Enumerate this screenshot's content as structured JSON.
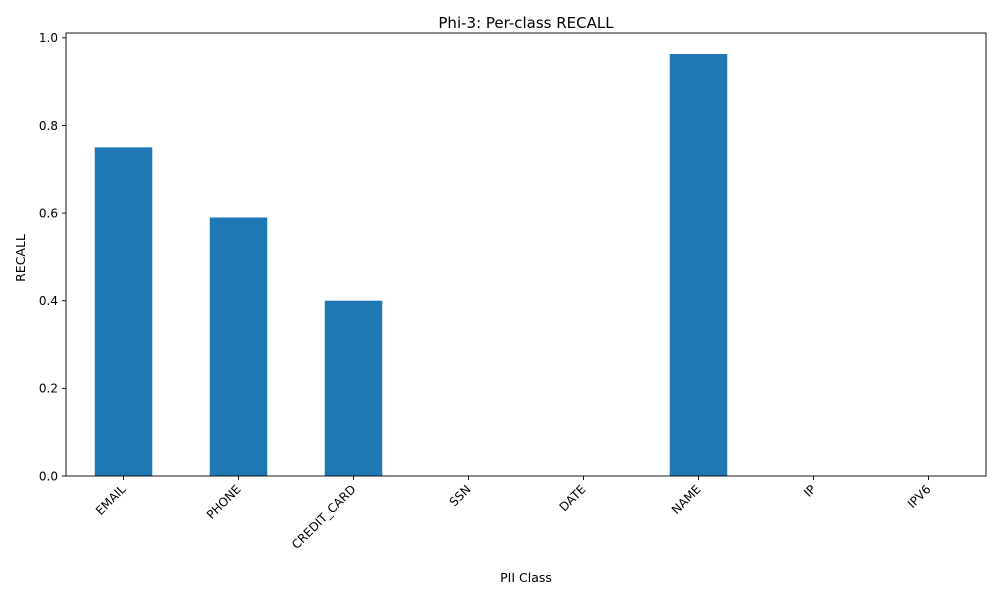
{
  "chart_data": {
    "type": "bar",
    "title": "Phi-3: Per-class RECALL",
    "xlabel": "PII Class",
    "ylabel": "RECALL",
    "categories": [
      "EMAIL",
      "PHONE",
      "CREDIT_CARD",
      "SSN",
      "DATE",
      "NAME",
      "IP",
      "IPV6"
    ],
    "values": [
      0.75,
      0.59,
      0.4,
      0.0,
      0.0,
      0.963,
      0.0,
      0.0
    ],
    "ylim": [
      0,
      1.011
    ],
    "yticks": [
      "0.0",
      "0.2",
      "0.4",
      "0.6",
      "0.8",
      "1.0"
    ],
    "bar_color": "#1f77b4",
    "grid": false,
    "legend": "none"
  }
}
